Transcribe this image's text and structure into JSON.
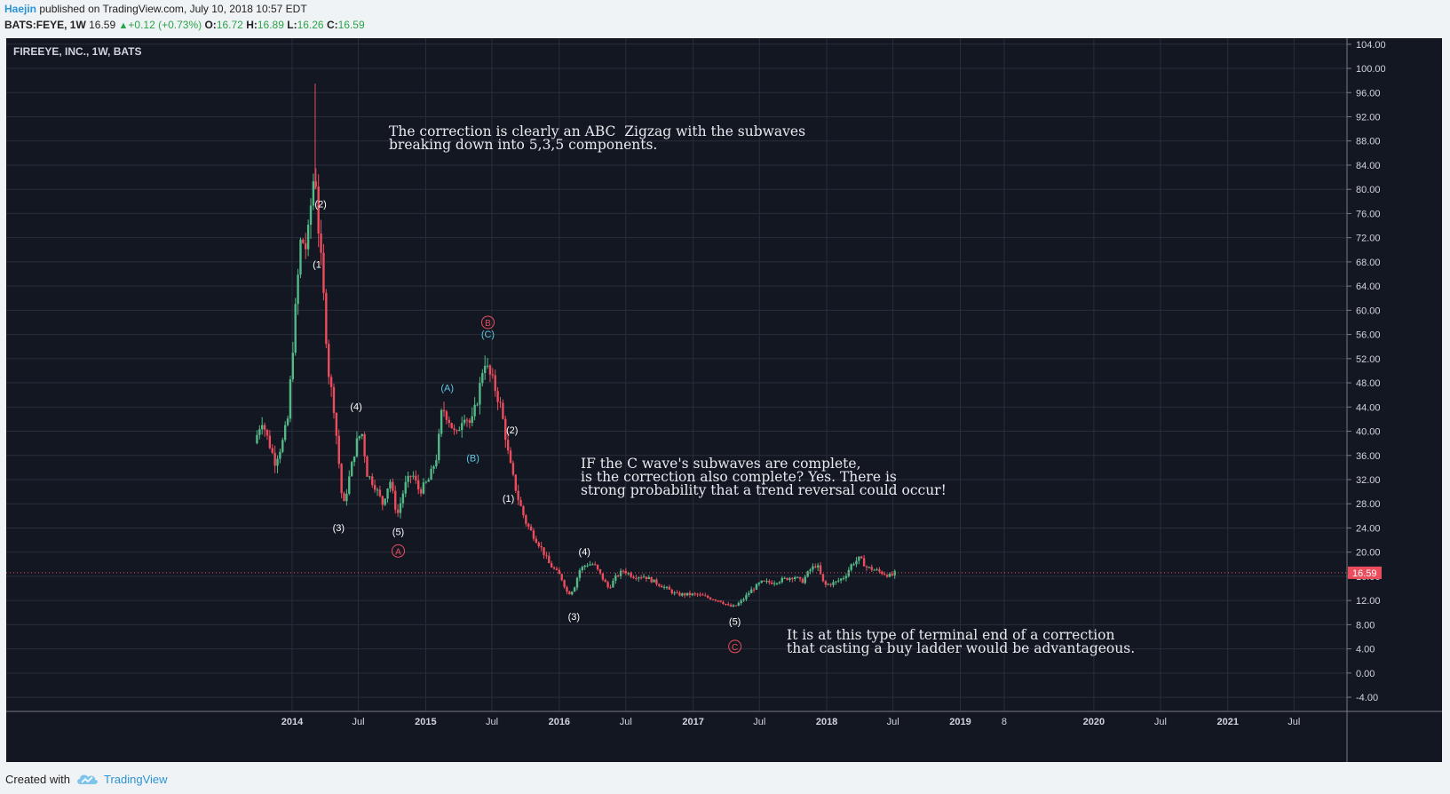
{
  "header": {
    "user": "Haejin",
    "published": "published on TradingView.com, July 10, 2018 10:57 EDT",
    "symbol": "BATS:FEYE, 1W",
    "price": "16.59",
    "up_arrow": "▲",
    "change": "+0.12 (+0.73%)",
    "o_label": "O:",
    "o_val": "16.72",
    "h_label": "H:",
    "h_val": "16.89",
    "l_label": "L:",
    "l_val": "16.26",
    "c_label": "C:",
    "c_val": "16.59"
  },
  "footer": {
    "created_with": "Created with",
    "brand": "TradingView"
  },
  "colors": {
    "up": "#53b987",
    "down": "#eb4d5c",
    "bg": "#131722",
    "grid": "#2a2e39",
    "text": "#d1d4dc",
    "wave_cyan": "#5ec8e5",
    "wave_red": "#eb4d5c"
  },
  "chart_data": {
    "type": "candlestick",
    "title": "FIREEYE, INC., 1W, BATS",
    "ylim": [
      -6,
      106
    ],
    "y_ticks": [
      "104.00",
      "100.00",
      "96.00",
      "92.00",
      "88.00",
      "84.00",
      "80.00",
      "76.00",
      "72.00",
      "68.00",
      "64.00",
      "60.00",
      "56.00",
      "52.00",
      "48.00",
      "44.00",
      "40.00",
      "36.00",
      "32.00",
      "28.00",
      "24.00",
      "20.00",
      "16.00",
      "12.00",
      "8.00",
      "4.00",
      "0.00",
      "-4.00"
    ],
    "x_ticks": [
      {
        "label": "2014",
        "date": "2014-01-01",
        "bold": true
      },
      {
        "label": "Jul",
        "date": "2014-07-01",
        "bold": false
      },
      {
        "label": "2015",
        "date": "2015-01-01",
        "bold": true
      },
      {
        "label": "Jul",
        "date": "2015-07-01",
        "bold": false
      },
      {
        "label": "2016",
        "date": "2016-01-01",
        "bold": true
      },
      {
        "label": "Jul",
        "date": "2016-07-01",
        "bold": false
      },
      {
        "label": "2017",
        "date": "2017-01-01",
        "bold": true
      },
      {
        "label": "Jul",
        "date": "2017-07-01",
        "bold": false
      },
      {
        "label": "2018",
        "date": "2018-01-01",
        "bold": true
      },
      {
        "label": "Jul",
        "date": "2018-07-01",
        "bold": false
      },
      {
        "label": "2019",
        "date": "2019-01-01",
        "bold": true
      },
      {
        "label": "8",
        "date": "2019-05-01",
        "bold": false
      },
      {
        "label": "2020",
        "date": "2020-01-01",
        "bold": true
      },
      {
        "label": "Jul",
        "date": "2020-07-01",
        "bold": false
      },
      {
        "label": "2021",
        "date": "2021-01-01",
        "bold": true
      },
      {
        "label": "Jul",
        "date": "2021-07-01",
        "bold": false
      }
    ],
    "last_price": "16.59",
    "price_path": [
      [
        "2013-09-20",
        38
      ],
      [
        "2013-10-10",
        42
      ],
      [
        "2013-10-25",
        39
      ],
      [
        "2013-11-15",
        35
      ],
      [
        "2013-12-05",
        38
      ],
      [
        "2013-12-20",
        42
      ],
      [
        "2014-01-10",
        60
      ],
      [
        "2014-01-25",
        72
      ],
      [
        "2014-02-10",
        70
      ],
      [
        "2014-02-25",
        80
      ],
      [
        "2014-03-05",
        84
      ],
      [
        "2014-03-12",
        75
      ],
      [
        "2014-03-25",
        65
      ],
      [
        "2014-04-10",
        50
      ],
      [
        "2014-04-25",
        44
      ],
      [
        "2014-05-10",
        34
      ],
      [
        "2014-05-20",
        27
      ],
      [
        "2014-06-05",
        32
      ],
      [
        "2014-06-25",
        38
      ],
      [
        "2014-07-10",
        40
      ],
      [
        "2014-07-25",
        33
      ],
      [
        "2014-08-15",
        31
      ],
      [
        "2014-09-05",
        28
      ],
      [
        "2014-09-25",
        32
      ],
      [
        "2014-10-15",
        26
      ],
      [
        "2014-11-05",
        31
      ],
      [
        "2014-11-25",
        33
      ],
      [
        "2014-12-15",
        30
      ],
      [
        "2015-01-10",
        32
      ],
      [
        "2015-02-01",
        36
      ],
      [
        "2015-02-15",
        44
      ],
      [
        "2015-03-05",
        42
      ],
      [
        "2015-03-25",
        39
      ],
      [
        "2015-04-15",
        43
      ],
      [
        "2015-05-05",
        41
      ],
      [
        "2015-05-25",
        46
      ],
      [
        "2015-06-10",
        52
      ],
      [
        "2015-06-20",
        50
      ],
      [
        "2015-07-05",
        48
      ],
      [
        "2015-07-25",
        44
      ],
      [
        "2015-08-05",
        40
      ],
      [
        "2015-08-15",
        36
      ],
      [
        "2015-08-25",
        33
      ],
      [
        "2015-09-10",
        29
      ],
      [
        "2015-10-01",
        25
      ],
      [
        "2015-10-20",
        23
      ],
      [
        "2015-11-10",
        21
      ],
      [
        "2015-12-05",
        18
      ],
      [
        "2016-01-05",
        16
      ],
      [
        "2016-01-25",
        13
      ],
      [
        "2016-02-10",
        14
      ],
      [
        "2016-02-25",
        17
      ],
      [
        "2016-03-15",
        18
      ],
      [
        "2016-04-05",
        18
      ],
      [
        "2016-04-25",
        16
      ],
      [
        "2016-05-15",
        14
      ],
      [
        "2016-06-05",
        16
      ],
      [
        "2016-06-25",
        17
      ],
      [
        "2016-07-20",
        16
      ],
      [
        "2016-08-20",
        16
      ],
      [
        "2016-09-20",
        15
      ],
      [
        "2016-10-20",
        14
      ],
      [
        "2016-11-15",
        13
      ],
      [
        "2016-12-10",
        13
      ],
      [
        "2017-01-10",
        13
      ],
      [
        "2017-02-10",
        12.5
      ],
      [
        "2017-03-15",
        12
      ],
      [
        "2017-04-10",
        11
      ],
      [
        "2017-04-25",
        11
      ],
      [
        "2017-05-15",
        12
      ],
      [
        "2017-06-05",
        13.5
      ],
      [
        "2017-07-05",
        15
      ],
      [
        "2017-08-05",
        15
      ],
      [
        "2017-09-05",
        15.5
      ],
      [
        "2017-10-05",
        16
      ],
      [
        "2017-10-25",
        15
      ],
      [
        "2017-11-15",
        17
      ],
      [
        "2017-12-05",
        18
      ],
      [
        "2017-12-25",
        14.5
      ],
      [
        "2018-01-25",
        15
      ],
      [
        "2018-02-20",
        16
      ],
      [
        "2018-03-10",
        18
      ],
      [
        "2018-04-01",
        19
      ],
      [
        "2018-04-20",
        17.5
      ],
      [
        "2018-05-15",
        17
      ],
      [
        "2018-06-05",
        16.5
      ],
      [
        "2018-06-25",
        16
      ],
      [
        "2018-07-08",
        16.59
      ]
    ],
    "wave_labels": [
      {
        "text": "(2)",
        "date": "2014-03-20",
        "price": 77,
        "color": "white"
      },
      {
        "text": "(1",
        "date": "2014-03-10",
        "price": 67,
        "color": "white"
      },
      {
        "text": "(4)",
        "date": "2014-06-25",
        "price": 43.5,
        "color": "white"
      },
      {
        "text": "(3)",
        "date": "2014-05-08",
        "price": 23.5,
        "color": "white"
      },
      {
        "text": "(5)",
        "date": "2014-10-18",
        "price": 22.8,
        "color": "white"
      },
      {
        "text": "(A)",
        "date": "2015-03-01",
        "price": 46.6,
        "color": "cyan"
      },
      {
        "text": "(B)",
        "date": "2015-05-10",
        "price": 35,
        "color": "cyan"
      },
      {
        "text": "(C)",
        "date": "2015-06-20",
        "price": 55.5,
        "color": "cyan"
      },
      {
        "text": "(2)",
        "date": "2015-08-25",
        "price": 39.6,
        "color": "white"
      },
      {
        "text": "(1)",
        "date": "2015-08-15",
        "price": 28.3,
        "color": "white"
      },
      {
        "text": "(4)",
        "date": "2016-03-10",
        "price": 19.5,
        "color": "white"
      },
      {
        "text": "(3)",
        "date": "2016-02-10",
        "price": 8.8,
        "color": "white"
      },
      {
        "text": "(5)",
        "date": "2017-04-25",
        "price": 8,
        "color": "white"
      }
    ],
    "circle_labels": [
      {
        "text": "A",
        "date": "2014-10-18",
        "price": 20.2
      },
      {
        "text": "B",
        "date": "2015-06-20",
        "price": 58
      },
      {
        "text": "C",
        "date": "2017-04-25",
        "price": 4.4
      }
    ]
  },
  "notes": [
    "The correction is clearly an ABC  Zigzag with the subwaves\nbreaking down into 5,3,5 components.",
    "IF the C wave's subwaves are complete,\nis the correction also complete? Yes. There is\nstrong probability that a trend reversal could occur!",
    "It is at this type of terminal end of a correction\nthat casting a buy ladder would be advantageous."
  ]
}
